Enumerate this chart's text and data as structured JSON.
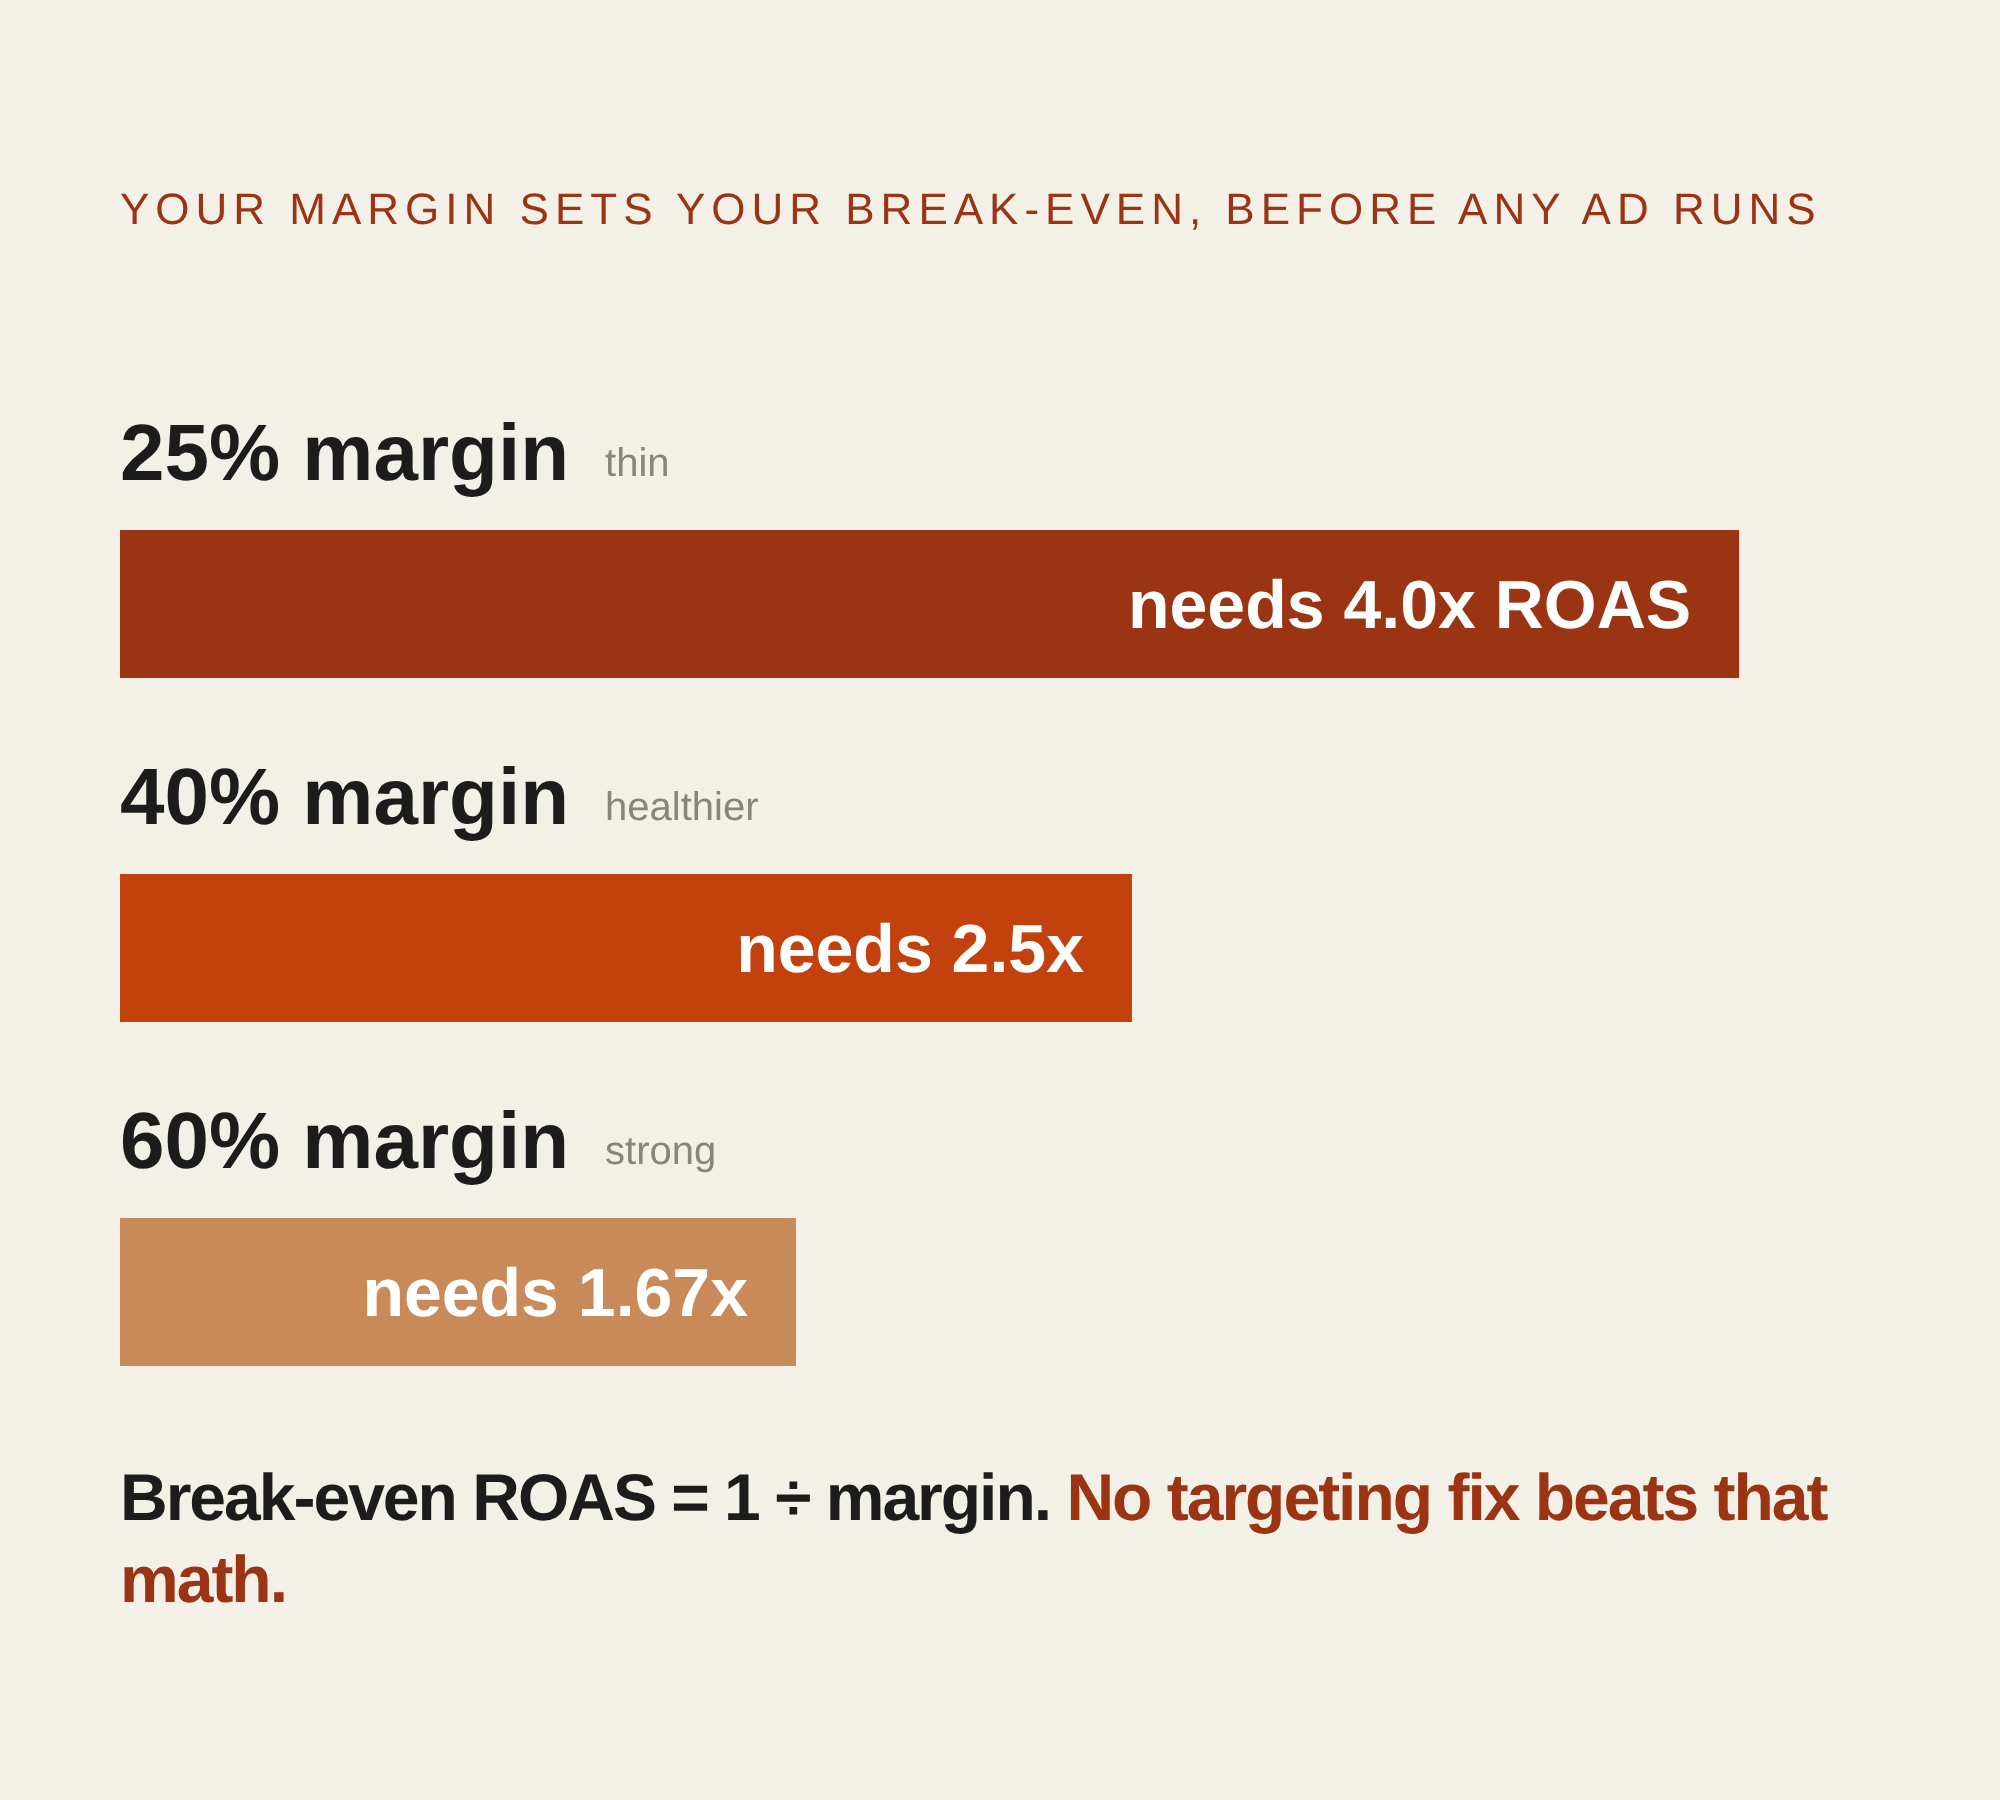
{
  "chart_data": {
    "type": "bar",
    "orientation": "horizontal",
    "title": "YOUR MARGIN SETS YOUR BREAK-EVEN, BEFORE ANY AD RUNS",
    "categories": [
      "25% margin",
      "40% margin",
      "60% margin"
    ],
    "values": [
      4.0,
      2.5,
      1.67
    ],
    "colors": [
      "#9a3412",
      "#c2410c",
      "#c98a5a"
    ],
    "value_labels": [
      "needs 4.0x ROAS",
      "needs 2.5x",
      "needs 1.67x"
    ],
    "annotations": [
      "thin",
      "healthier",
      "strong",
      "Break-even ROAS = 1 ÷ margin.",
      "No targeting fix beats that math."
    ]
  }
}
